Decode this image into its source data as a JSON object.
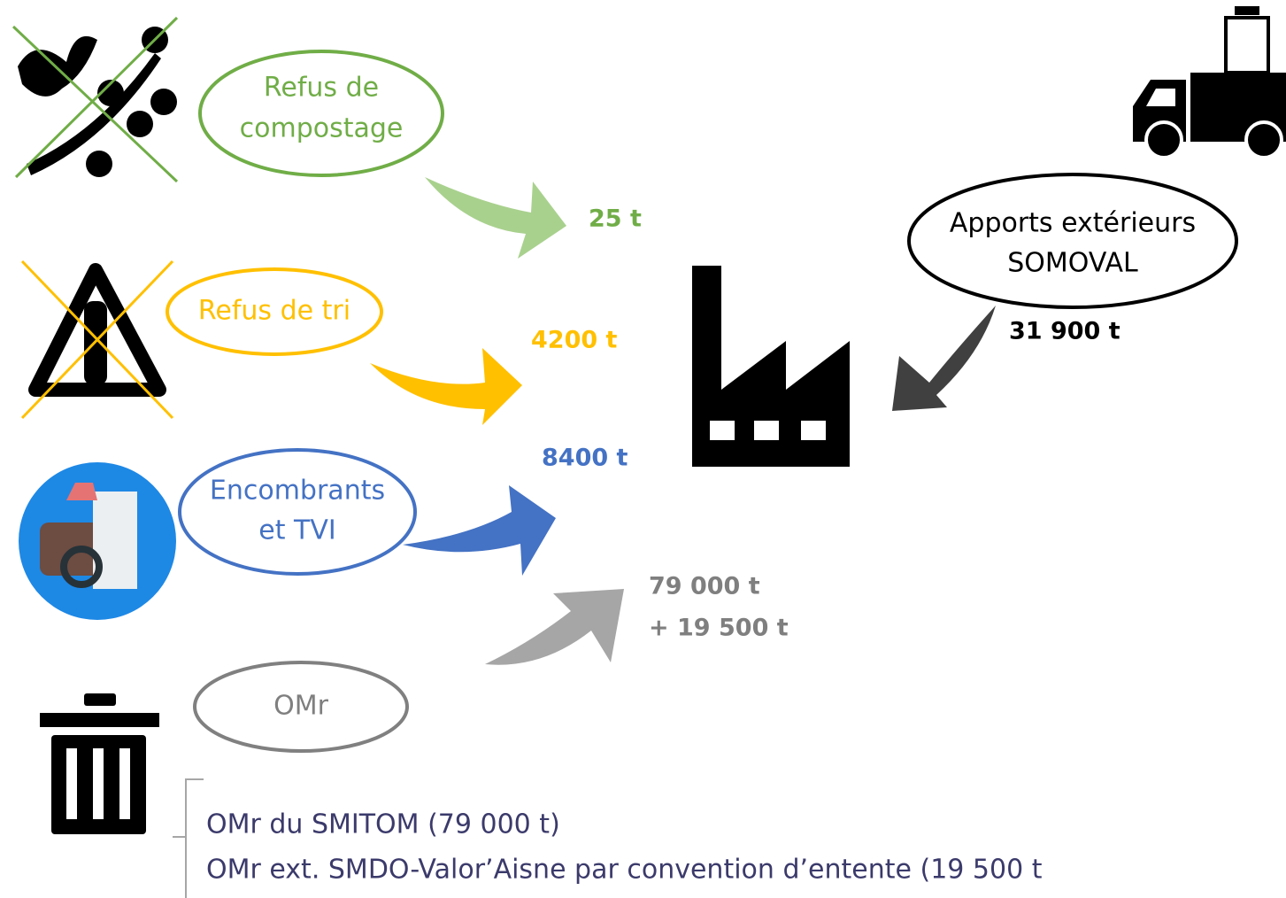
{
  "sources": [
    {
      "label": [
        "Refus de",
        "compostage"
      ],
      "amount": [
        "25 t"
      ]
    },
    {
      "label": [
        "Refus de tri"
      ],
      "amount": [
        "4200 t"
      ]
    },
    {
      "label": [
        "Encombrants",
        "et TVI"
      ],
      "amount": [
        "8400 t"
      ]
    },
    {
      "label": [
        "OMr"
      ],
      "amount": [
        "79 000 t",
        "+ 19 500 t"
      ]
    }
  ],
  "external": {
    "label": [
      "Apports extérieurs",
      "SOMOVAL"
    ],
    "amount": [
      "31 900 t"
    ]
  },
  "legend": [
    "OMr du SMITOM (79 000 t)",
    "OMr ext. SMDO-Valor’Aisne par convention d’entente (19 500 t"
  ]
}
